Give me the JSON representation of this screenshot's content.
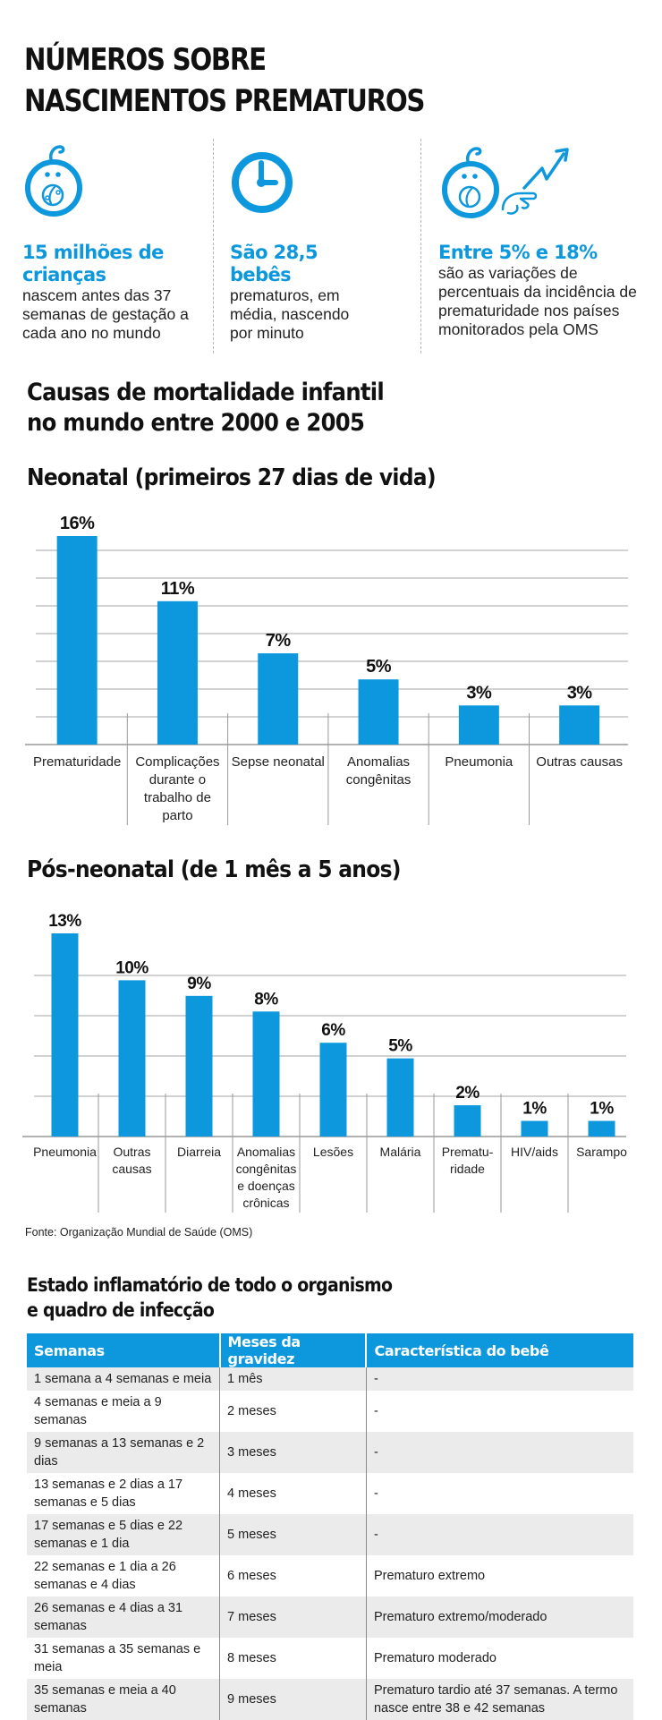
{
  "header": {
    "title_line1": "NÚMEROS SOBRE",
    "title_line2": "NASCIMENTOS PREMATUROS"
  },
  "brand_color": "#0d98dd",
  "stats": [
    {
      "icon": "baby-icon",
      "headline": "15 milhões de crianças",
      "body": "nascem antes das 37 semanas de gestação a cada ano no mundo"
    },
    {
      "icon": "clock-icon",
      "headline": "São 28,5 bebês",
      "body": "prematuros, em média, nascendo por minuto"
    },
    {
      "icon": "baby-trend-icon",
      "headline": "Entre 5% e 18%",
      "body": "são as variações de percentuais da incidência de prematuridade nos países monitorados pela OMS"
    }
  ],
  "mortality": {
    "title_line1": "Causas de mortalidade infantil",
    "title_line2": "no mundo entre 2000 e 2005",
    "source": "Fonte: Organização Mundial de Saúde (OMS)"
  },
  "chart_data": [
    {
      "type": "bar",
      "title": "Neonatal (primeiros 27 dias de vida)",
      "categories": [
        "Prematuridade",
        "Complicações durante o trabalho de parto",
        "Sepse neonatal",
        "Anomalias congênitas",
        "Pneumonia",
        "Outras causas"
      ],
      "category_lines": [
        [
          "Prematuridade"
        ],
        [
          "Complicações",
          "durante o",
          "trabalho de",
          "parto"
        ],
        [
          "Sepse neonatal"
        ],
        [
          "Anomalias",
          "congênitas"
        ],
        [
          "Pneumonia"
        ],
        [
          "Outras causas"
        ]
      ],
      "values": [
        16,
        11,
        7,
        5,
        3,
        3
      ],
      "labels": [
        "16%",
        "11%",
        "7%",
        "5%",
        "3%",
        "3%"
      ],
      "unit": "%",
      "xlabel": "",
      "ylabel": "",
      "ylim": [
        0,
        16
      ],
      "grid": true,
      "legend": "none"
    },
    {
      "type": "bar",
      "title": "Pós-neonatal (de 1 mês a 5 anos)",
      "categories": [
        "Pneumonia",
        "Outras causas",
        "Diarreia",
        "Anomalias congênitas e doenças crônicas",
        "Lesões",
        "Malária",
        "Prematuridade",
        "HIV/aids",
        "Sarampo"
      ],
      "category_lines": [
        [
          "Pneumonia"
        ],
        [
          "Outras",
          "causas"
        ],
        [
          "Diarreia"
        ],
        [
          "Anomalias",
          "congênitas",
          "e doenças",
          "crônicas"
        ],
        [
          "Lesões"
        ],
        [
          "Malária"
        ],
        [
          "Prematu-",
          "ridade"
        ],
        [
          "HIV/aids"
        ],
        [
          "Sarampo"
        ]
      ],
      "values": [
        13,
        10,
        9,
        8,
        6,
        5,
        2,
        1,
        1
      ],
      "labels": [
        "13%",
        "10%",
        "9%",
        "8%",
        "6%",
        "5%",
        "2%",
        "1%",
        "1%"
      ],
      "unit": "%",
      "xlabel": "",
      "ylabel": "",
      "ylim": [
        0,
        13
      ],
      "grid": true,
      "legend": "none"
    }
  ],
  "table": {
    "title_line1": "Estado inflamatório de todo o organismo",
    "title_line2": "e quadro de infecção",
    "headers": [
      "Semanas",
      "Meses da gravidez",
      "Característica do bebê"
    ],
    "rows": [
      [
        "1 semana a 4 semanas e meia",
        "1 mês",
        "-"
      ],
      [
        "4 semanas e meia  a 9 semanas",
        " 2 meses",
        "-"
      ],
      [
        "9 semanas a 13 semanas e 2 dias",
        "3 meses",
        "-"
      ],
      [
        "13 semanas e 2 dias a 17 semanas e 5 dias",
        "4 meses",
        "-"
      ],
      [
        "17 semanas e 5 dias e 22 semanas e 1 dia",
        "5 meses",
        "-"
      ],
      [
        "22 semanas e 1 dia a 26 semanas e 4 dias",
        "6 meses",
        "Prematuro extremo"
      ],
      [
        "26 semanas e 4 dias a 31 semanas",
        "7 meses",
        "Prematuro  extremo/moderado"
      ],
      [
        "31 semanas a 35 semanas e meia",
        "8 meses",
        "Prematuro moderado"
      ],
      [
        "35 semanas e meia a 40 semanas",
        "9 meses",
        "Prematuro tardio até 37 semanas. A termo nasce entre 38 e 42 semanas"
      ]
    ]
  }
}
